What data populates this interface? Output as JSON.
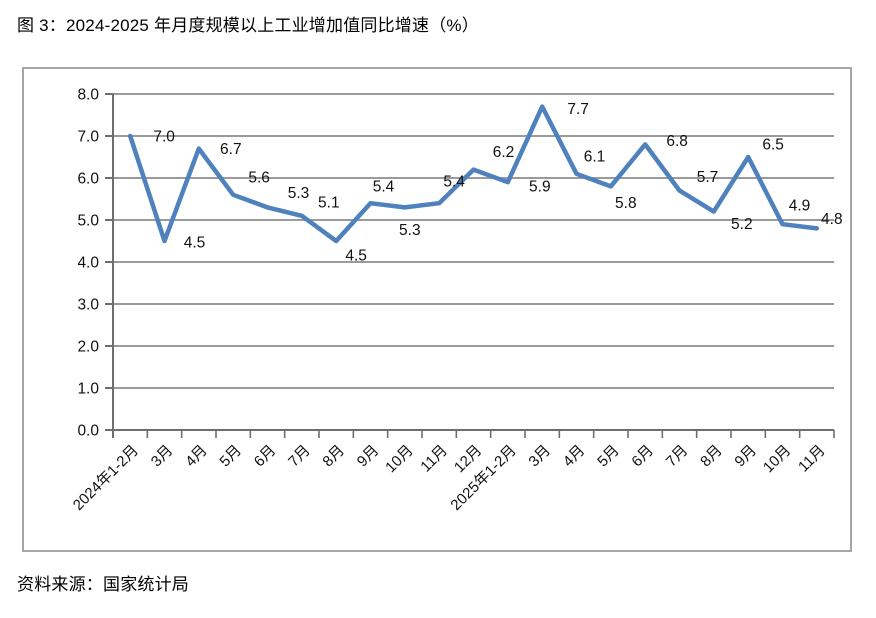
{
  "header": {
    "title": "图 3：2024-2025 年月度规模以上工业增加值同比增速（%）"
  },
  "footer": {
    "source": "资料来源：国家统计局"
  },
  "chart_data": {
    "type": "line",
    "title": "图 3：2024-2025 年月度规模以上工业增加值同比增速（%）",
    "xlabel": "",
    "ylabel": "",
    "categories": [
      "2024年1-2月",
      "3月",
      "4月",
      "5月",
      "6月",
      "7月",
      "8月",
      "9月",
      "10月",
      "11月",
      "12月",
      "2025年1-2月",
      "3月",
      "4月",
      "5月",
      "6月",
      "7月",
      "8月",
      "9月",
      "10月",
      "11月"
    ],
    "values": [
      7.0,
      4.5,
      6.7,
      5.6,
      5.3,
      5.1,
      4.5,
      5.4,
      5.3,
      5.4,
      6.2,
      5.9,
      7.7,
      6.1,
      5.8,
      6.8,
      5.7,
      5.2,
      6.5,
      4.9,
      4.8
    ],
    "point_labels": [
      "7.0",
      "4.5",
      "6.7",
      "5.6",
      "5.3",
      "5.1",
      "4.5",
      "5.4",
      "5.3",
      "5.4",
      "6.2",
      "5.9",
      "7.7",
      "6.1",
      "5.8",
      "6.8",
      "5.7",
      "5.2",
      "6.5",
      "4.9",
      "4.8"
    ],
    "ylim": [
      0.0,
      8.0
    ],
    "ytick_labels": [
      "0.0",
      "1.0",
      "2.0",
      "3.0",
      "4.0",
      "5.0",
      "6.0",
      "7.0",
      "8.0"
    ],
    "grid": true,
    "legend_position": "none",
    "x_label_rotation_deg": -45,
    "colors": {
      "line": "#4F81BD",
      "gridline": "#8C8C8C",
      "axis": "#6E6E6E",
      "frame": "#A6A6A6",
      "text": "#111111"
    }
  }
}
